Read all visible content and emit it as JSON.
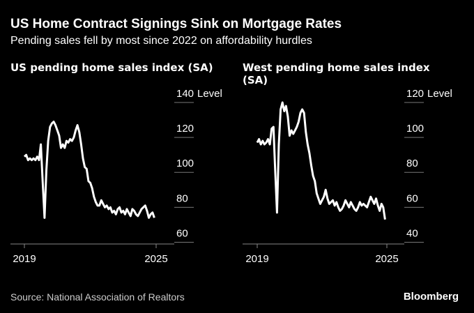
{
  "title": "US Home Contract Signings Sink on Mortgage Rates",
  "subtitle": "Pending sales fell by most since 2022 on affordability hurdles",
  "source": "Source: National Association of Realtors",
  "logo": "Bloomberg",
  "chart_data": [
    {
      "type": "line",
      "title": "US pending home sales index (SA)",
      "unit": "Level",
      "color": "#ffffff",
      "categories": [
        "2019",
        null,
        null,
        null,
        null,
        null,
        null,
        null,
        null,
        null,
        null,
        null,
        null,
        null,
        null,
        null,
        null,
        null,
        null,
        null,
        null,
        null,
        null,
        null,
        null,
        null,
        null,
        null,
        null,
        null,
        null,
        null,
        null,
        null,
        null,
        null,
        null,
        null,
        null,
        null,
        null,
        null,
        null,
        null,
        null,
        null,
        null,
        null,
        null,
        null,
        null,
        null,
        null,
        null,
        null,
        null,
        null,
        null,
        null,
        null,
        null,
        null,
        null,
        null,
        null,
        null,
        null,
        null,
        null,
        null,
        null,
        null,
        "2025"
      ],
      "values": [
        109,
        110,
        107,
        108,
        107,
        108,
        107,
        109,
        107,
        116,
        94,
        74,
        101,
        118,
        126,
        128,
        129,
        127,
        124,
        121,
        114,
        116,
        114,
        118,
        117,
        119,
        118,
        120,
        124,
        127,
        123,
        116,
        108,
        103,
        102,
        95,
        94,
        91,
        86,
        83,
        81,
        81,
        84,
        82,
        80,
        81,
        79,
        80,
        77,
        78,
        76,
        79,
        80,
        77,
        78,
        76,
        79,
        77,
        75,
        79,
        78,
        76,
        75,
        77,
        79,
        80,
        81,
        78,
        74,
        76,
        77,
        74,
        null
      ],
      "ylim": [
        59,
        140
      ],
      "yticks": [
        60,
        80,
        100,
        120,
        140
      ]
    },
    {
      "type": "line",
      "title": "West pending home sales index (SA)",
      "unit": "Level",
      "color": "#ffffff",
      "categories": [
        "2019",
        null,
        null,
        null,
        null,
        null,
        null,
        null,
        null,
        null,
        null,
        null,
        null,
        null,
        null,
        null,
        null,
        null,
        null,
        null,
        null,
        null,
        null,
        null,
        null,
        null,
        null,
        null,
        null,
        null,
        null,
        null,
        null,
        null,
        null,
        null,
        null,
        null,
        null,
        null,
        null,
        null,
        null,
        null,
        null,
        null,
        null,
        null,
        null,
        null,
        null,
        null,
        null,
        null,
        null,
        null,
        null,
        null,
        null,
        null,
        null,
        null,
        null,
        null,
        null,
        null,
        null,
        null,
        null,
        null,
        null,
        null,
        "2025"
      ],
      "values": [
        97,
        99,
        96,
        98,
        96,
        97,
        99,
        96,
        105,
        106,
        81,
        57,
        96,
        116,
        120,
        115,
        118,
        112,
        101,
        104,
        102,
        104,
        106,
        109,
        114,
        116,
        114,
        103,
        96,
        91,
        84,
        78,
        75,
        68,
        65,
        62,
        64,
        66,
        70,
        65,
        62,
        63,
        64,
        61,
        63,
        60,
        58,
        59,
        61,
        64,
        62,
        60,
        63,
        61,
        59,
        58,
        60,
        63,
        61,
        62,
        61,
        60,
        63,
        66,
        64,
        62,
        65,
        61,
        58,
        62,
        60,
        53,
        null
      ],
      "ylim": [
        39,
        120
      ],
      "yticks": [
        40,
        60,
        80,
        100,
        120
      ]
    }
  ]
}
